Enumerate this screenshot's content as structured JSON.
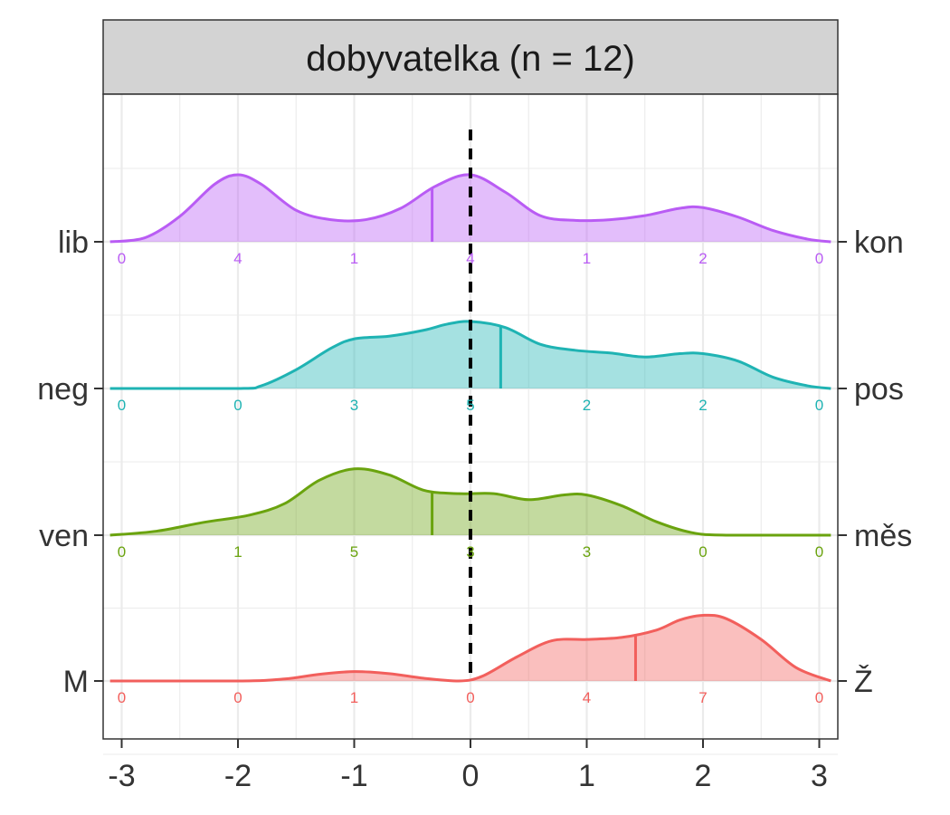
{
  "panel": {
    "title": "dobyvatelka (n = 12)",
    "strip_fill": "#d3d3d3"
  },
  "chart_data": {
    "type": "ridgeline",
    "xlim": [
      -3,
      3
    ],
    "x_ticks": [
      "-3",
      "-2",
      "-1",
      "0",
      "1",
      "2",
      "3"
    ],
    "reference_line_x": 0,
    "grid": true,
    "count_positions": [
      -3,
      -2,
      -1,
      0,
      1,
      2,
      3
    ],
    "rows": [
      {
        "left_label": "lib",
        "right_label": "kon",
        "color": "#b95cf4",
        "mean": -0.33,
        "density": [
          [
            -3.1,
            0.0
          ],
          [
            -2.8,
            0.06
          ],
          [
            -2.5,
            0.38
          ],
          [
            -2.2,
            0.86
          ],
          [
            -2.0,
            1.0
          ],
          [
            -1.8,
            0.86
          ],
          [
            -1.5,
            0.47
          ],
          [
            -1.2,
            0.33
          ],
          [
            -0.9,
            0.33
          ],
          [
            -0.6,
            0.5
          ],
          [
            -0.3,
            0.83
          ],
          [
            0.0,
            1.0
          ],
          [
            0.3,
            0.74
          ],
          [
            0.6,
            0.39
          ],
          [
            0.9,
            0.32
          ],
          [
            1.2,
            0.33
          ],
          [
            1.5,
            0.39
          ],
          [
            1.8,
            0.5
          ],
          [
            2.0,
            0.51
          ],
          [
            2.3,
            0.37
          ],
          [
            2.6,
            0.17
          ],
          [
            2.9,
            0.04
          ],
          [
            3.1,
            0.0
          ]
        ],
        "counts": [
          "0",
          "4",
          "1",
          "4",
          "1",
          "2",
          "0"
        ]
      },
      {
        "left_label": "neg",
        "right_label": "pos",
        "color": "#1fb3b3",
        "mean": 0.26,
        "density": [
          [
            -3.1,
            0.0
          ],
          [
            -2.0,
            0.0
          ],
          [
            -1.8,
            0.04
          ],
          [
            -1.5,
            0.28
          ],
          [
            -1.2,
            0.6
          ],
          [
            -1.0,
            0.74
          ],
          [
            -0.7,
            0.78
          ],
          [
            -0.4,
            0.87
          ],
          [
            -0.2,
            0.96
          ],
          [
            0.0,
            1.0
          ],
          [
            0.3,
            0.91
          ],
          [
            0.6,
            0.66
          ],
          [
            0.9,
            0.57
          ],
          [
            1.2,
            0.53
          ],
          [
            1.5,
            0.47
          ],
          [
            1.8,
            0.52
          ],
          [
            2.0,
            0.52
          ],
          [
            2.3,
            0.41
          ],
          [
            2.6,
            0.17
          ],
          [
            2.9,
            0.04
          ],
          [
            3.1,
            0.0
          ]
        ],
        "counts": [
          "0",
          "0",
          "3",
          "5",
          "2",
          "2",
          "0"
        ]
      },
      {
        "left_label": "ven",
        "right_label": "měs",
        "color": "#6aa30e",
        "mean": -0.33,
        "density": [
          [
            -3.1,
            0.0
          ],
          [
            -2.7,
            0.06
          ],
          [
            -2.3,
            0.19
          ],
          [
            -1.9,
            0.3
          ],
          [
            -1.6,
            0.47
          ],
          [
            -1.3,
            0.82
          ],
          [
            -1.0,
            0.99
          ],
          [
            -0.7,
            0.9
          ],
          [
            -0.4,
            0.67
          ],
          [
            -0.1,
            0.62
          ],
          [
            0.2,
            0.62
          ],
          [
            0.5,
            0.53
          ],
          [
            0.8,
            0.6
          ],
          [
            1.0,
            0.6
          ],
          [
            1.3,
            0.44
          ],
          [
            1.6,
            0.2
          ],
          [
            1.9,
            0.04
          ],
          [
            2.2,
            0.0
          ],
          [
            3.1,
            0.0
          ]
        ],
        "counts": [
          "0",
          "1",
          "5",
          "3",
          "3",
          "0",
          "0"
        ]
      },
      {
        "left_label": "M",
        "right_label": "Ž",
        "color": "#f25f5c",
        "mean": 1.42,
        "density": [
          [
            -3.1,
            0.0
          ],
          [
            -2.0,
            0.0
          ],
          [
            -1.6,
            0.03
          ],
          [
            -1.3,
            0.1
          ],
          [
            -1.0,
            0.14
          ],
          [
            -0.7,
            0.11
          ],
          [
            -0.4,
            0.04
          ],
          [
            -0.1,
            0.0
          ],
          [
            0.1,
            0.07
          ],
          [
            0.4,
            0.36
          ],
          [
            0.7,
            0.6
          ],
          [
            1.0,
            0.62
          ],
          [
            1.3,
            0.65
          ],
          [
            1.6,
            0.76
          ],
          [
            1.8,
            0.91
          ],
          [
            2.0,
            0.98
          ],
          [
            2.2,
            0.93
          ],
          [
            2.5,
            0.62
          ],
          [
            2.8,
            0.2
          ],
          [
            3.1,
            0.0
          ]
        ],
        "counts": [
          "0",
          "0",
          "1",
          "0",
          "4",
          "7",
          "0"
        ]
      }
    ]
  }
}
